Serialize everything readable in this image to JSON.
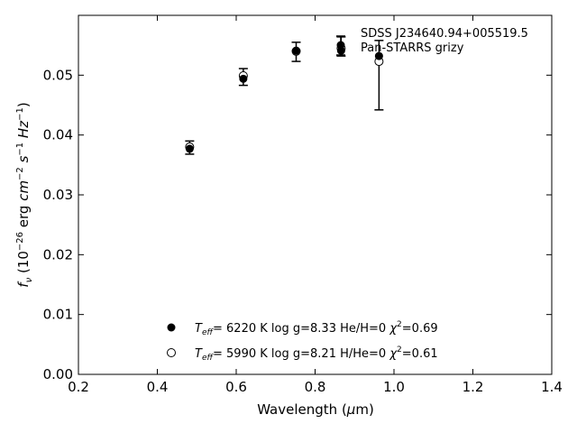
{
  "chart_data": {
    "type": "scatter",
    "xlabel": "Wavelength (μm)",
    "ylabel": "f_ν (10^−26 erg cm^−2 s^−1 Hz^−1)",
    "xlim": [
      0.2,
      1.4
    ],
    "ylim": [
      0.0,
      0.06
    ],
    "xticks": [
      "0.2",
      "0.4",
      "0.6",
      "0.8",
      "1.0",
      "1.2",
      "1.4"
    ],
    "yticks": [
      "0.00",
      "0.01",
      "0.02",
      "0.03",
      "0.04",
      "0.05"
    ],
    "grid": false,
    "legend_placement": "top-right",
    "observed": {
      "label_line1": "SDSS J234640.94+005519.5",
      "label_line2": "Pan-STARRS grizy",
      "points": [
        {
          "x": 0.482,
          "y": 0.0379,
          "err": 0.0011
        },
        {
          "x": 0.618,
          "y": 0.0497,
          "err": 0.0014
        },
        {
          "x": 0.752,
          "y": 0.0539,
          "err": 0.0016
        },
        {
          "x": 0.866,
          "y": 0.0548,
          "err": 0.0016
        },
        {
          "x": 0.962,
          "y": 0.05,
          "err": 0.0058
        }
      ]
    },
    "series": [
      {
        "name": "Teff= 6220 K log g=8.33 He/H=0 χ²=0.69",
        "marker": "filled",
        "teff_value": "6220 K",
        "logg": "log g=8.33",
        "comp": "He/H=0",
        "chi": "=0.69",
        "points": [
          {
            "x": 0.482,
            "y": 0.0377
          },
          {
            "x": 0.618,
            "y": 0.0494
          },
          {
            "x": 0.752,
            "y": 0.0541
          },
          {
            "x": 0.866,
            "y": 0.0541
          },
          {
            "x": 0.962,
            "y": 0.0532
          }
        ]
      },
      {
        "name": "Teff= 5990 K log g=8.21 H/He=0 χ²=0.61",
        "marker": "open",
        "teff_value": "5990 K",
        "logg": "log g=8.21",
        "comp": "H/He=0",
        "chi": "=0.61",
        "points": [
          {
            "x": 0.482,
            "y": 0.038
          },
          {
            "x": 0.618,
            "y": 0.0499
          },
          {
            "x": 0.752,
            "y": 0.054
          },
          {
            "x": 0.866,
            "y": 0.0545
          },
          {
            "x": 0.962,
            "y": 0.0523
          }
        ]
      }
    ]
  }
}
